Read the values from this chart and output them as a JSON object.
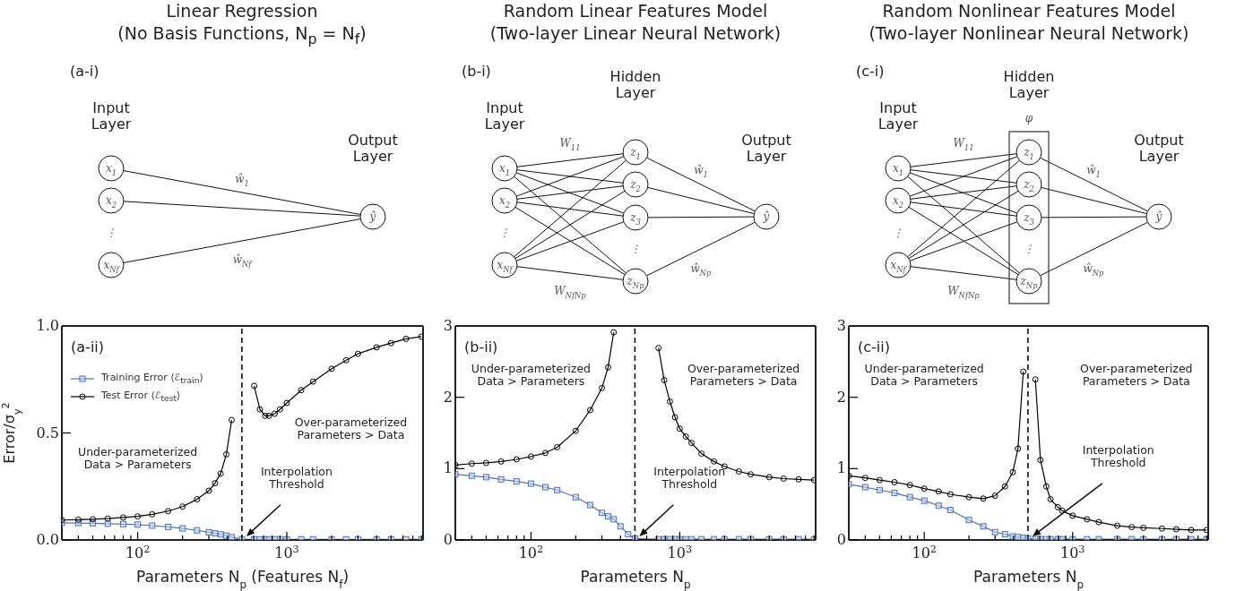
{
  "chart_data": [
    {
      "type": "line",
      "title": "Linear Regression\n(No Basis Functions, N$_{p}$ = N$_{f}$)",
      "xlabel": "Parameters N$_{p}$ (Features N$_{f}$)",
      "ylabel": "Error/σ$_{y}$$^{2}$",
      "log": "x",
      "legend": "top left",
      "annotations": [
        "(a-ii)",
        "Under-parameterized\nData > Parameters",
        "Over-parameterized\nParameters > Data",
        "Interpolation\nThreshold",
        "(a-i)",
        "Input\nLayer",
        "Output\nLayer",
        "x$_{1}$",
        "x$_{2}$",
        "⋮",
        "x$_{Nf}$",
        "ŷ",
        "ŵ$_{1}$",
        "ŵ$_{Nf}$"
      ],
      "x": [
        31,
        40,
        50,
        63,
        80,
        100,
        125,
        160,
        200,
        250,
        300,
        330,
        360,
        393,
        427,
        500,
        604,
        660,
        716,
        760,
        830,
        900,
        1000,
        1250,
        1500,
        2000,
        2500,
        3000,
        4000,
        5000,
        6300,
        8000
      ],
      "series": [
        {
          "name": "Training Error ⟨ℰ$_{train}$⟩",
          "color": "#4a72c4",
          "marker": "square",
          "values": [
            0.08,
            0.079,
            0.078,
            0.076,
            0.074,
            0.072,
            0.067,
            0.061,
            0.054,
            0.045,
            0.036,
            0.031,
            0.026,
            0.02,
            0.013,
            0.003,
            0.003,
            0.003,
            0.003,
            0.003,
            0.003,
            0.003,
            0.003,
            0.003,
            0.003,
            0.003,
            0.003,
            0.003,
            0.003,
            0.003,
            0.003,
            0.003
          ]
        },
        {
          "name": "Test Error ⟨ℰ$_{test}$⟩",
          "color": "#000000",
          "marker": "circle",
          "values": [
            0.093,
            0.095,
            0.097,
            0.1,
            0.105,
            0.11,
            0.12,
            0.135,
            0.156,
            0.19,
            0.23,
            0.265,
            0.31,
            0.4,
            0.56,
            null,
            0.72,
            0.61,
            0.58,
            0.58,
            0.59,
            0.61,
            0.64,
            0.7,
            0.74,
            0.8,
            0.84,
            0.87,
            0.9,
            0.92,
            0.94,
            0.95
          ]
        }
      ],
      "xlim": [
        31,
        8200
      ],
      "ylim": [
        0,
        1
      ],
      "xticks": [
        {
          "value": 40,
          "label": null
        },
        {
          "value": 50,
          "label": null
        },
        {
          "value": 60,
          "label": null
        },
        {
          "value": 70,
          "label": null
        },
        {
          "value": 80,
          "label": null
        },
        {
          "value": 90,
          "label": null
        },
        {
          "value": 100,
          "label": "10$^{2}$"
        },
        {
          "value": 200,
          "label": null
        },
        {
          "value": 300,
          "label": null
        },
        {
          "value": 400,
          "label": null
        },
        {
          "value": 500,
          "label": null
        },
        {
          "value": 600,
          "label": null
        },
        {
          "value": 700,
          "label": null
        },
        {
          "value": 800,
          "label": null
        },
        {
          "value": 900,
          "label": null
        },
        {
          "value": 1000,
          "label": "10$^{3}$"
        },
        {
          "value": 2000,
          "label": null
        },
        {
          "value": 3000,
          "label": null
        },
        {
          "value": 4000,
          "label": null
        },
        {
          "value": 5000,
          "label": null
        },
        {
          "value": 6000,
          "label": null
        },
        {
          "value": 7000,
          "label": null
        },
        {
          "value": 8000,
          "label": null
        }
      ],
      "yticks": [
        {
          "value": 0,
          "label": "0.0"
        },
        {
          "value": 0.5,
          "label": "0.5"
        },
        {
          "value": 1,
          "label": "1.0"
        }
      ],
      "ref_lines": [
        {
          "axis": "x",
          "value": 500,
          "color": "#000000",
          "line_style": "dashed"
        }
      ]
    },
    {
      "type": "line",
      "title": "Random Linear Features Model\n(Two-layer Linear Neural Network)",
      "xlabel": "Parameters N$_{p}$",
      "log": "x",
      "annotations": [
        "(b-ii)",
        "Under-parameterized\nData > Parameters",
        "Over-parameterized\nParameters > Data",
        "Interpolation\nThreshold",
        "(b-i)",
        "Input\nLayer",
        "Hidden\nLayer",
        "Output\nLayer",
        "x$_{1}$",
        "x$_{2}$",
        "⋮",
        "x$_{Nf}$",
        "z$_{1}$",
        "z$_{2}$",
        "z$_{3}$",
        "⋮",
        "z$_{Np}$",
        "ŷ",
        "W$_{11}$",
        "W$_{NfNp}$",
        "ŵ$_{1}$",
        "ŵ$_{Np}$"
      ],
      "x": [
        31,
        40,
        50,
        63,
        80,
        100,
        125,
        150,
        200,
        250,
        300,
        330,
        360,
        400,
        450,
        500,
        720,
        787,
        859,
        930,
        1000,
        1100,
        1200,
        1400,
        1700,
        2000,
        2500,
        3000,
        4000,
        5000,
        6300,
        8000
      ],
      "series": [
        {
          "color": "#4a72c4",
          "marker": "square",
          "values": [
            0.92,
            0.9,
            0.88,
            0.85,
            0.82,
            0.79,
            0.74,
            0.7,
            0.6,
            0.49,
            0.38,
            0.33,
            0.29,
            0.19,
            0.08,
            0.02,
            0.01,
            0.01,
            0.01,
            0.01,
            0.01,
            0.01,
            0.01,
            0.01,
            0.01,
            0.01,
            0.01,
            0.01,
            0.01,
            0.01,
            0.01,
            0.01
          ]
        },
        {
          "color": "#000000",
          "marker": "circle",
          "values": [
            1.05,
            1.07,
            1.08,
            1.1,
            1.13,
            1.17,
            1.22,
            1.3,
            1.53,
            1.82,
            2.13,
            2.42,
            2.91,
            null,
            null,
            null,
            2.69,
            2.24,
            1.94,
            1.72,
            1.56,
            1.45,
            1.36,
            1.21,
            1.1,
            1.03,
            0.96,
            0.92,
            0.88,
            0.86,
            0.85,
            0.84
          ]
        }
      ],
      "xlim": [
        31,
        8200
      ],
      "ylim": [
        0,
        3
      ],
      "xticks": [
        {
          "value": 40,
          "label": null
        },
        {
          "value": 50,
          "label": null
        },
        {
          "value": 60,
          "label": null
        },
        {
          "value": 70,
          "label": null
        },
        {
          "value": 80,
          "label": null
        },
        {
          "value": 90,
          "label": null
        },
        {
          "value": 100,
          "label": "10$^{2}$"
        },
        {
          "value": 200,
          "label": null
        },
        {
          "value": 300,
          "label": null
        },
        {
          "value": 400,
          "label": null
        },
        {
          "value": 500,
          "label": null
        },
        {
          "value": 600,
          "label": null
        },
        {
          "value": 700,
          "label": null
        },
        {
          "value": 800,
          "label": null
        },
        {
          "value": 900,
          "label": null
        },
        {
          "value": 1000,
          "label": "10$^{3}$"
        },
        {
          "value": 2000,
          "label": null
        },
        {
          "value": 3000,
          "label": null
        },
        {
          "value": 4000,
          "label": null
        },
        {
          "value": 5000,
          "label": null
        },
        {
          "value": 6000,
          "label": null
        },
        {
          "value": 7000,
          "label": null
        },
        {
          "value": 8000,
          "label": null
        }
      ],
      "yticks": [
        0,
        1,
        2,
        3
      ],
      "ref_lines": [
        {
          "axis": "x",
          "value": 500,
          "color": "#000000",
          "line_style": "dashed"
        }
      ]
    },
    {
      "type": "line",
      "title": "Random Nonlinear Features Model\n(Two-layer Nonlinear Neural Network)",
      "xlabel": "Parameters N$_{p}$",
      "log": "x",
      "annotations": [
        "(c-ii)",
        "Under-parameterized\nData > Parameters",
        "Over-parameterized\nParameters > Data",
        "Interpolation\nThreshold",
        "(c-i)",
        "Input\nLayer",
        "Hidden\nLayer",
        "Output\nLayer",
        "φ",
        "x$_{1}$",
        "x$_{2}$",
        "⋮",
        "x$_{Nf}$",
        "z$_{1}$",
        "z$_{2}$",
        "z$_{3}$",
        "⋮",
        "z$_{Np}$",
        "ŷ",
        "W$_{11}$",
        "W$_{NfNp}$",
        "ŵ$_{1}$",
        "ŵ$_{Np}$"
      ],
      "x": [
        31,
        40,
        50,
        63,
        80,
        100,
        125,
        150,
        200,
        250,
        300,
        350,
        395,
        428,
        465,
        500,
        561,
        607,
        665,
        710,
        795,
        850,
        1000,
        1250,
        1500,
        2000,
        2500,
        3000,
        4000,
        5000,
        6300,
        8000
      ],
      "series": [
        {
          "color": "#4a72c4",
          "marker": "square",
          "values": [
            0.78,
            0.74,
            0.7,
            0.66,
            0.6,
            0.55,
            0.48,
            0.42,
            0.28,
            0.19,
            0.11,
            0.08,
            0.05,
            0.04,
            0.03,
            0.02,
            0.01,
            0.01,
            0.01,
            0.01,
            0.01,
            0.01,
            0.01,
            0.01,
            0.01,
            0.01,
            0.01,
            0.01,
            0.01,
            0.01,
            0.01,
            0.01
          ]
        },
        {
          "color": "#000000",
          "marker": "circle",
          "values": [
            0.9,
            0.87,
            0.84,
            0.81,
            0.77,
            0.72,
            0.68,
            0.64,
            0.6,
            0.58,
            0.62,
            0.75,
            0.95,
            1.28,
            2.36,
            null,
            2.25,
            1.12,
            0.75,
            0.57,
            0.46,
            0.41,
            0.34,
            0.29,
            0.25,
            0.2,
            0.18,
            0.17,
            0.16,
            0.15,
            0.14,
            0.14
          ]
        }
      ],
      "xlim": [
        31,
        8200
      ],
      "ylim": [
        0,
        3
      ],
      "xticks": [
        {
          "value": 40,
          "label": null
        },
        {
          "value": 50,
          "label": null
        },
        {
          "value": 60,
          "label": null
        },
        {
          "value": 70,
          "label": null
        },
        {
          "value": 80,
          "label": null
        },
        {
          "value": 90,
          "label": null
        },
        {
          "value": 100,
          "label": "10$^{2}$"
        },
        {
          "value": 200,
          "label": null
        },
        {
          "value": 300,
          "label": null
        },
        {
          "value": 400,
          "label": null
        },
        {
          "value": 500,
          "label": null
        },
        {
          "value": 600,
          "label": null
        },
        {
          "value": 700,
          "label": null
        },
        {
          "value": 800,
          "label": null
        },
        {
          "value": 900,
          "label": null
        },
        {
          "value": 1000,
          "label": "10$^{3}$"
        },
        {
          "value": 2000,
          "label": null
        },
        {
          "value": 3000,
          "label": null
        },
        {
          "value": 4000,
          "label": null
        },
        {
          "value": 5000,
          "label": null
        },
        {
          "value": 6000,
          "label": null
        },
        {
          "value": 7000,
          "label": null
        },
        {
          "value": 8000,
          "label": null
        }
      ],
      "yticks": [
        0,
        1,
        2,
        3
      ],
      "ref_lines": [
        {
          "axis": "x",
          "value": 500,
          "color": "#000000",
          "line_style": "dashed"
        }
      ]
    }
  ]
}
